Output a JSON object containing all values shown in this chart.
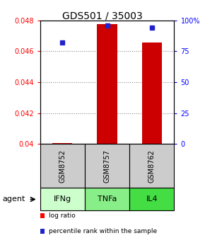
{
  "title": "GDS501 / 35003",
  "samples": [
    "GSM8752",
    "GSM8757",
    "GSM8762"
  ],
  "agents": [
    "IFNg",
    "TNFa",
    "IL4"
  ],
  "log_ratio_values": [
    0.04005,
    0.04775,
    0.04655
  ],
  "percentile_values": [
    82,
    96,
    94
  ],
  "ylim_left": [
    0.04,
    0.048
  ],
  "ylim_right": [
    0,
    100
  ],
  "yticks_left": [
    0.04,
    0.042,
    0.044,
    0.046,
    0.048
  ],
  "yticks_right": [
    0,
    25,
    50,
    75,
    100
  ],
  "ytick_labels_left": [
    "0.04",
    "0.042",
    "0.044",
    "0.046",
    "0.048"
  ],
  "ytick_labels_right": [
    "0",
    "25",
    "50",
    "75",
    "100%"
  ],
  "bar_color": "#cc0000",
  "dot_color": "#2222cc",
  "bar_width": 0.45,
  "base_value": 0.04,
  "grid_color": "#888888",
  "sample_box_color": "#cccccc",
  "agent_box_colors": [
    "#ccffcc",
    "#88ee88",
    "#44dd44"
  ],
  "legend_bar_label": "log ratio",
  "legend_dot_label": "percentile rank within the sample",
  "title_fontsize": 10,
  "tick_fontsize": 7,
  "label_fontsize": 8
}
